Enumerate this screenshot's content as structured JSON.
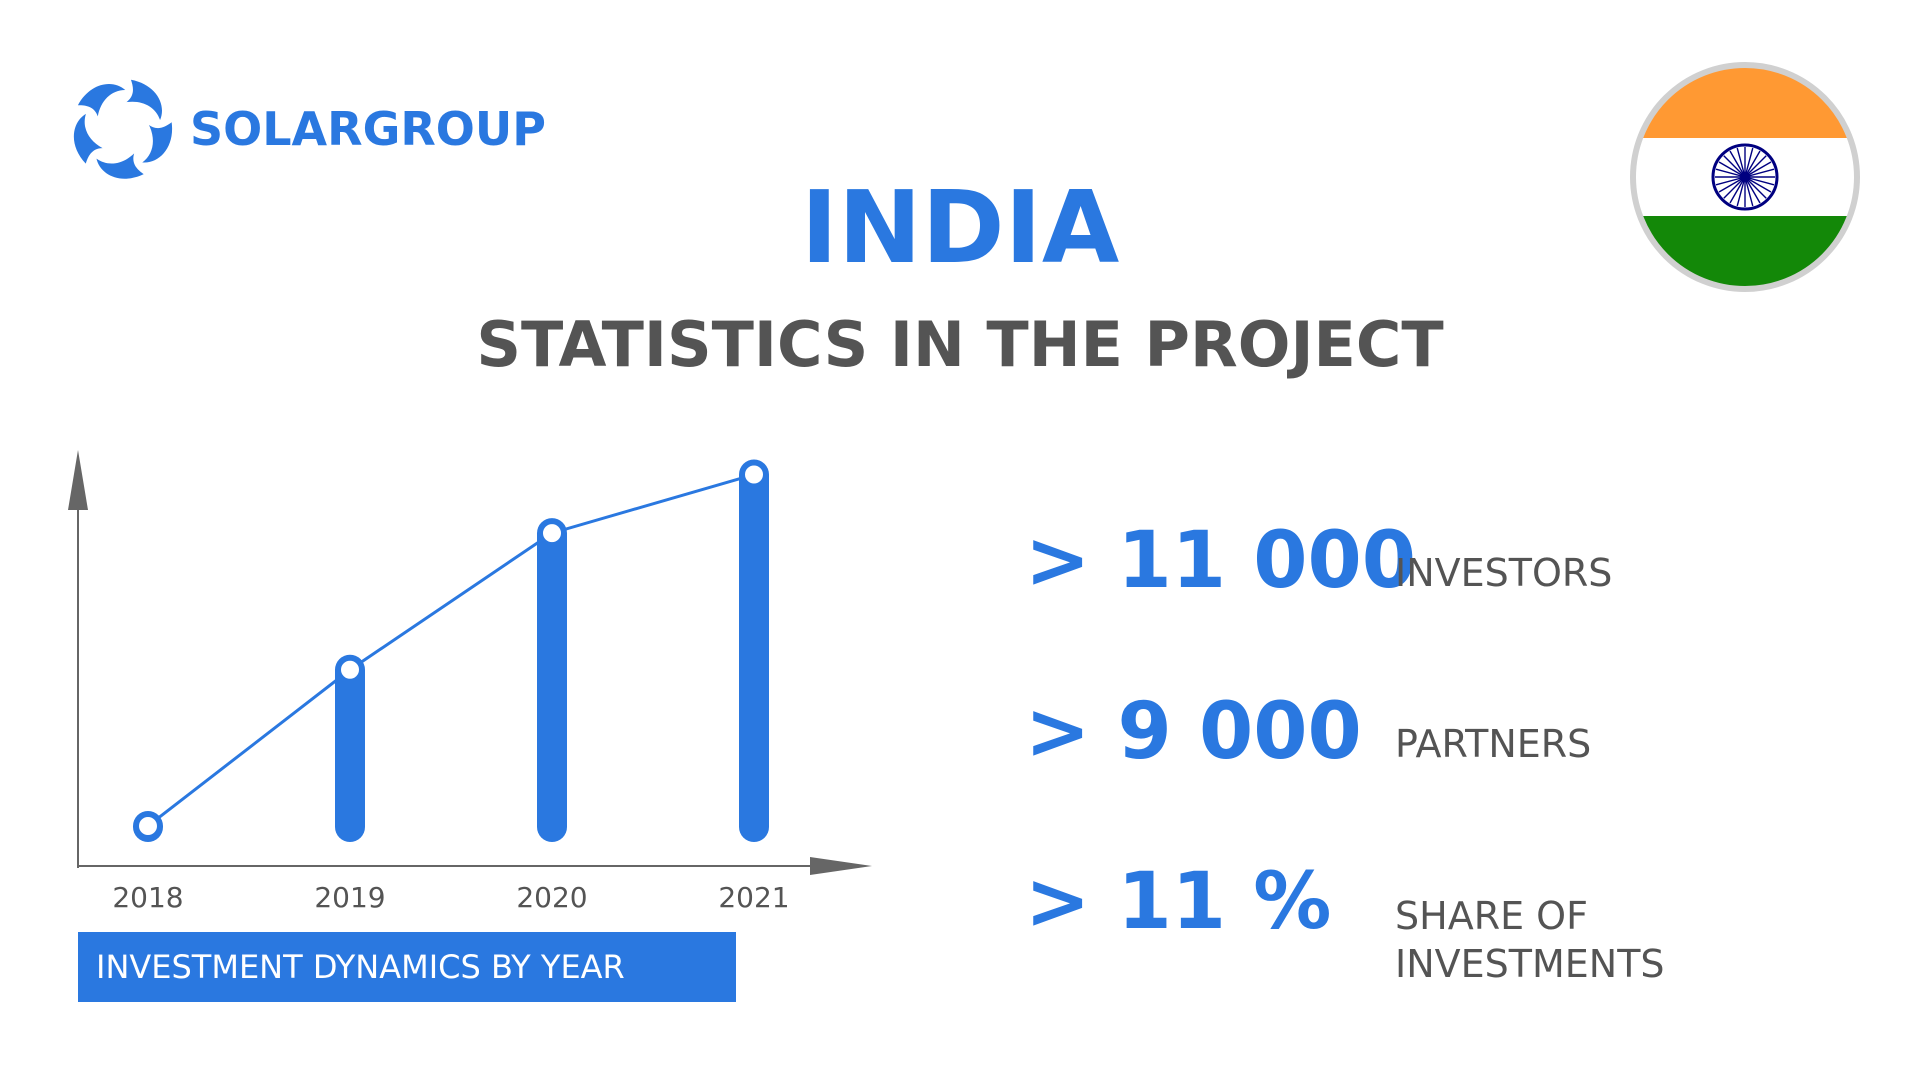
{
  "colors": {
    "accent": "#2a78e0",
    "dark_text": "#545454",
    "axis": "#666666",
    "flag_saffron": "#ff9933",
    "flag_white": "#ffffff",
    "flag_green": "#138808",
    "flag_chakra": "#000080",
    "flag_border": "#d0d0d0"
  },
  "logo": {
    "text": "SOLARGROUP",
    "icon": "solar-swirl-icon"
  },
  "flag": {
    "icon": "india-flag-icon"
  },
  "header": {
    "title": "INDIA",
    "subtitle": "STATISTICS IN THE PROJECT"
  },
  "chart_data": {
    "type": "bar",
    "categories": [
      "2018",
      "2019",
      "2020",
      "2021"
    ],
    "values": [
      1,
      5,
      8.5,
      10
    ],
    "ylim": [
      0,
      10.5
    ],
    "grid": false,
    "legend": "none",
    "overlay_line": true,
    "caption": "INVESTMENT DYNAMICS BY YEAR"
  },
  "stats": [
    {
      "value": "> 11 000",
      "label": "INVESTORS"
    },
    {
      "value": "> 9 000",
      "label": "PARTNERS"
    },
    {
      "value": "> 11 %",
      "label_line1": "SHARE OF",
      "label_line2": "INVESTMENTS"
    }
  ]
}
